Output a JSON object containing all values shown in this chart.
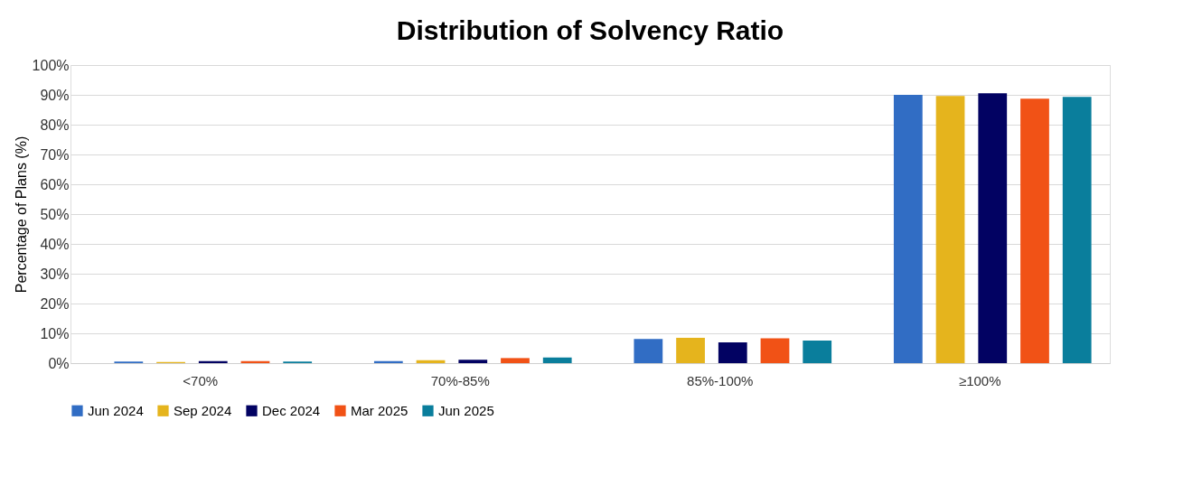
{
  "chart_data": {
    "type": "bar",
    "title": "Distribution of Solvency Ratio",
    "ylabel": "Percentage of Plans (%)",
    "categories": [
      "<70%",
      "70%-85%",
      "85%-100%",
      "≥100%"
    ],
    "series": [
      {
        "name": "Jun 2024",
        "color": "#316dc4",
        "values": [
          0.5,
          0.7,
          8.1,
          90.0
        ]
      },
      {
        "name": "Sep 2024",
        "color": "#e5b41d",
        "values": [
          0.4,
          1.0,
          8.5,
          89.6
        ]
      },
      {
        "name": "Dec 2024",
        "color": "#020262",
        "values": [
          0.7,
          1.1,
          7.0,
          90.5
        ]
      },
      {
        "name": "Mar 2025",
        "color": "#f15216",
        "values": [
          0.7,
          1.7,
          8.3,
          88.7
        ]
      },
      {
        "name": "Jun 2025",
        "color": "#0a7e9c",
        "values": [
          0.5,
          1.9,
          7.6,
          89.3
        ]
      }
    ],
    "ylim": [
      0,
      100
    ],
    "yticks": [
      {
        "value": 0,
        "label": "0%"
      },
      {
        "value": 10,
        "label": "10%"
      },
      {
        "value": 20,
        "label": "20%"
      },
      {
        "value": 30,
        "label": "30%"
      },
      {
        "value": 40,
        "label": "40%"
      },
      {
        "value": 50,
        "label": "50%"
      },
      {
        "value": 60,
        "label": "60%"
      },
      {
        "value": 70,
        "label": "70%"
      },
      {
        "value": 80,
        "label": "80%"
      },
      {
        "value": 90,
        "label": "90%"
      },
      {
        "value": 100,
        "label": "100%"
      }
    ],
    "grid": "y",
    "legend": "bottom"
  }
}
